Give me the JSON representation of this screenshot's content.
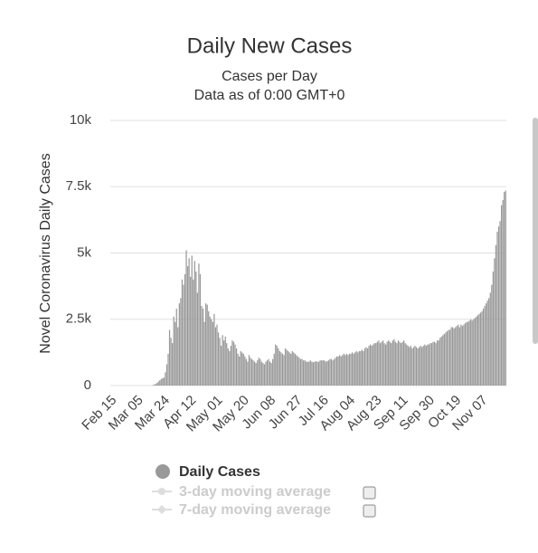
{
  "chart_data": {
    "type": "bar",
    "title": "Daily New Cases",
    "subtitle": [
      "Cases per Day",
      "Data as of 0:00 GMT+0"
    ],
    "y_label": "Novel Coronavirus Daily Cases",
    "ylim": [
      0,
      10000
    ],
    "yticks": [
      0,
      {
        "value": 2500,
        "label": "2.5k"
      },
      {
        "value": 5000,
        "label": "5k"
      },
      {
        "value": 7500,
        "label": "7.5k"
      },
      {
        "value": 10000,
        "label": "10k"
      }
    ],
    "grid": true,
    "categories": [
      "Feb 15",
      null,
      null,
      null,
      null,
      null,
      null,
      null,
      null,
      null,
      null,
      null,
      null,
      null,
      null,
      null,
      null,
      null,
      null,
      "Mar 05",
      null,
      null,
      null,
      null,
      null,
      null,
      null,
      null,
      null,
      null,
      null,
      null,
      null,
      null,
      null,
      null,
      null,
      null,
      "Mar 24",
      null,
      null,
      null,
      null,
      null,
      null,
      null,
      null,
      null,
      null,
      null,
      null,
      null,
      null,
      null,
      null,
      null,
      null,
      "Apr 12",
      null,
      null,
      null,
      null,
      null,
      null,
      null,
      null,
      null,
      null,
      null,
      null,
      null,
      null,
      null,
      null,
      null,
      null,
      "May 01",
      null,
      null,
      null,
      null,
      null,
      null,
      null,
      null,
      null,
      null,
      null,
      null,
      null,
      null,
      null,
      null,
      null,
      null,
      "May 20",
      null,
      null,
      null,
      null,
      null,
      null,
      null,
      null,
      null,
      null,
      null,
      null,
      null,
      null,
      null,
      null,
      null,
      null,
      "Jun 08",
      null,
      null,
      null,
      null,
      null,
      null,
      null,
      null,
      null,
      null,
      null,
      null,
      null,
      null,
      null,
      null,
      null,
      null,
      "Jun 27",
      null,
      null,
      null,
      null,
      null,
      null,
      null,
      null,
      null,
      null,
      null,
      null,
      null,
      null,
      null,
      null,
      null,
      null,
      "Jul 16",
      null,
      null,
      null,
      null,
      null,
      null,
      null,
      null,
      null,
      null,
      null,
      null,
      null,
      null,
      null,
      null,
      null,
      null,
      "Aug 04",
      null,
      null,
      null,
      null,
      null,
      null,
      null,
      null,
      null,
      null,
      null,
      null,
      null,
      null,
      null,
      null,
      null,
      null,
      "Aug 23",
      null,
      null,
      null,
      null,
      null,
      null,
      null,
      null,
      null,
      null,
      null,
      null,
      null,
      null,
      null,
      null,
      null,
      null,
      "Sep 11",
      null,
      null,
      null,
      null,
      null,
      null,
      null,
      null,
      null,
      null,
      null,
      null,
      null,
      null,
      null,
      null,
      null,
      null,
      "Sep 30",
      null,
      null,
      null,
      null,
      null,
      null,
      null,
      null,
      null,
      null,
      null,
      null,
      null,
      null,
      null,
      null,
      null,
      null,
      "Oct 19",
      null,
      null,
      null,
      null,
      null,
      null,
      null,
      null,
      null,
      null,
      null,
      null,
      null,
      null,
      null,
      null,
      null,
      null,
      "Nov 07",
      null,
      null,
      null,
      null,
      null,
      null,
      null,
      null,
      null,
      null,
      null,
      null,
      null,
      null,
      null,
      null,
      null
    ],
    "series": [
      {
        "name": "Daily Cases",
        "color": "#999999",
        "values": [
          0,
          0,
          0,
          0,
          0,
          0,
          0,
          0,
          0,
          0,
          0,
          0,
          0,
          0,
          0,
          0,
          0,
          0,
          0,
          0,
          0,
          0,
          0,
          0,
          0,
          0,
          0,
          0,
          0,
          0,
          20,
          40,
          60,
          100,
          150,
          200,
          250,
          280,
          300,
          500,
          800,
          1200,
          2100,
          1800,
          1600,
          2600,
          2400,
          2900,
          2200,
          3100,
          3300,
          4000,
          3800,
          4200,
          5100,
          4500,
          4800,
          4100,
          4900,
          4000,
          4700,
          4300,
          3500,
          4600,
          4200,
          3000,
          2900,
          2400,
          3100,
          3050,
          2800,
          2600,
          2500,
          2400,
          2700,
          2200,
          2300,
          2000,
          1800,
          1500,
          1900,
          1700,
          1850,
          1600,
          1400,
          1300,
          1500,
          1700,
          1650,
          1550,
          1400,
          1200,
          1100,
          1300,
          1250,
          1200,
          1100,
          1000,
          900,
          1150,
          1050,
          1000,
          950,
          900,
          850,
          950,
          1050,
          1000,
          900,
          850,
          800,
          900,
          950,
          1000,
          900,
          850,
          1000,
          1200,
          1550,
          1500,
          1400,
          1300,
          1250,
          1200,
          1150,
          1400,
          1350,
          1300,
          1250,
          1200,
          1300,
          1250,
          1200,
          1150,
          1100,
          1050,
          1000,
          1000,
          950,
          950,
          900,
          900,
          900,
          950,
          900,
          880,
          900,
          920,
          900,
          900,
          950,
          950,
          950,
          950,
          900,
          920,
          950,
          1000,
          1000,
          950,
          1000,
          1050,
          1100,
          1100,
          1150,
          1100,
          1150,
          1200,
          1150,
          1200,
          1150,
          1200,
          1200,
          1250,
          1200,
          1250,
          1300,
          1250,
          1300,
          1300,
          1350,
          1300,
          1400,
          1450,
          1400,
          1500,
          1550,
          1500,
          1550,
          1600,
          1600,
          1650,
          1700,
          1600,
          1650,
          1700,
          1600,
          1550,
          1650,
          1700,
          1650,
          1600,
          1700,
          1750,
          1650,
          1600,
          1700,
          1650,
          1600,
          1650,
          1700,
          1600,
          1550,
          1500,
          1450,
          1500,
          1400,
          1450,
          1500,
          1450,
          1400,
          1450,
          1500,
          1450,
          1500,
          1550,
          1500,
          1550,
          1550,
          1600,
          1600,
          1650,
          1650,
          1600,
          1700,
          1700,
          1800,
          1850,
          1900,
          1950,
          2000,
          2050,
          2100,
          2100,
          2200,
          2200,
          2150,
          2200,
          2250,
          2300,
          2200,
          2300,
          2250,
          2300,
          2350,
          2400,
          2400,
          2450,
          2500,
          2450,
          2500,
          2550,
          2600,
          2650,
          2700,
          2750,
          2800,
          2900,
          3000,
          3100,
          3200,
          3300,
          3500,
          3800,
          4300,
          4800,
          5300,
          5800,
          6000,
          6200,
          6800,
          7000,
          7300,
          7350
        ]
      }
    ],
    "inactive_series": [
      "3-day moving average",
      "7-day moving average"
    ]
  }
}
